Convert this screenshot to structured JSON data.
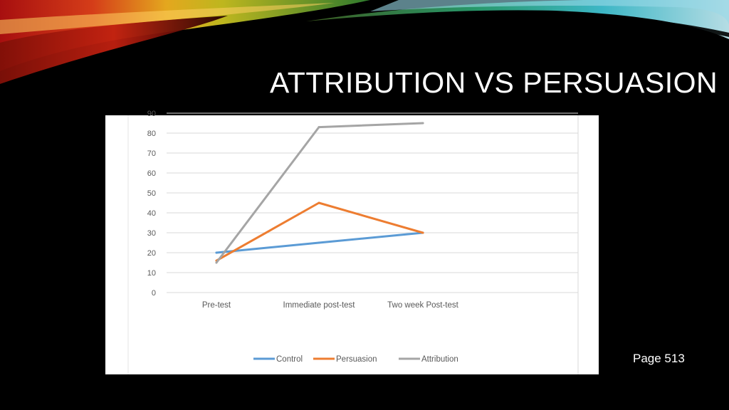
{
  "slide": {
    "title": "ATTRIBUTION VS PERSUASION",
    "page_label": "Page 513"
  },
  "colors": {
    "background": "#000000",
    "panel": "#ffffff",
    "grid": "#d9d9d9",
    "control": "#5b9bd5",
    "persuasion": "#ed7d31",
    "attribution": "#a5a5a5"
  },
  "chart_data": {
    "type": "line",
    "categories": [
      "Pre-test",
      "Immediate post-test",
      "Two week Post-test"
    ],
    "series": [
      {
        "name": "Control",
        "values": [
          20,
          25,
          30
        ],
        "color": "#5b9bd5"
      },
      {
        "name": "Persuasion",
        "values": [
          16,
          45,
          30
        ],
        "color": "#ed7d31"
      },
      {
        "name": "Attribution",
        "values": [
          15,
          83,
          85
        ],
        "color": "#a5a5a5"
      }
    ],
    "yticks": [
      0,
      10,
      20,
      30,
      40,
      50,
      60,
      70,
      80,
      90
    ],
    "ylim": [
      0,
      90
    ],
    "grid": true,
    "legend": "bottom"
  }
}
